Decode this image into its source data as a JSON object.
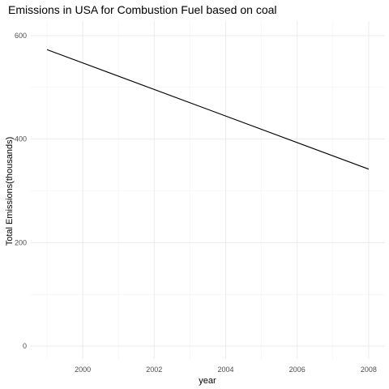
{
  "chart_data": {
    "type": "line",
    "title": "Emissions in USA for Combustion Fuel based on coal",
    "xlabel": "year",
    "ylabel": "Total Emissions(thousands)",
    "x": [
      1999,
      2008
    ],
    "series": [
      {
        "values": [
          573,
          342
        ],
        "color": "#000000"
      }
    ],
    "xlim": [
      1999,
      2008
    ],
    "ylim": [
      0,
      600
    ],
    "x_ticks": [
      2000,
      2002,
      2004,
      2006,
      2008
    ],
    "y_ticks": [
      0,
      200,
      400,
      600
    ],
    "grid": true,
    "legend": "none"
  }
}
